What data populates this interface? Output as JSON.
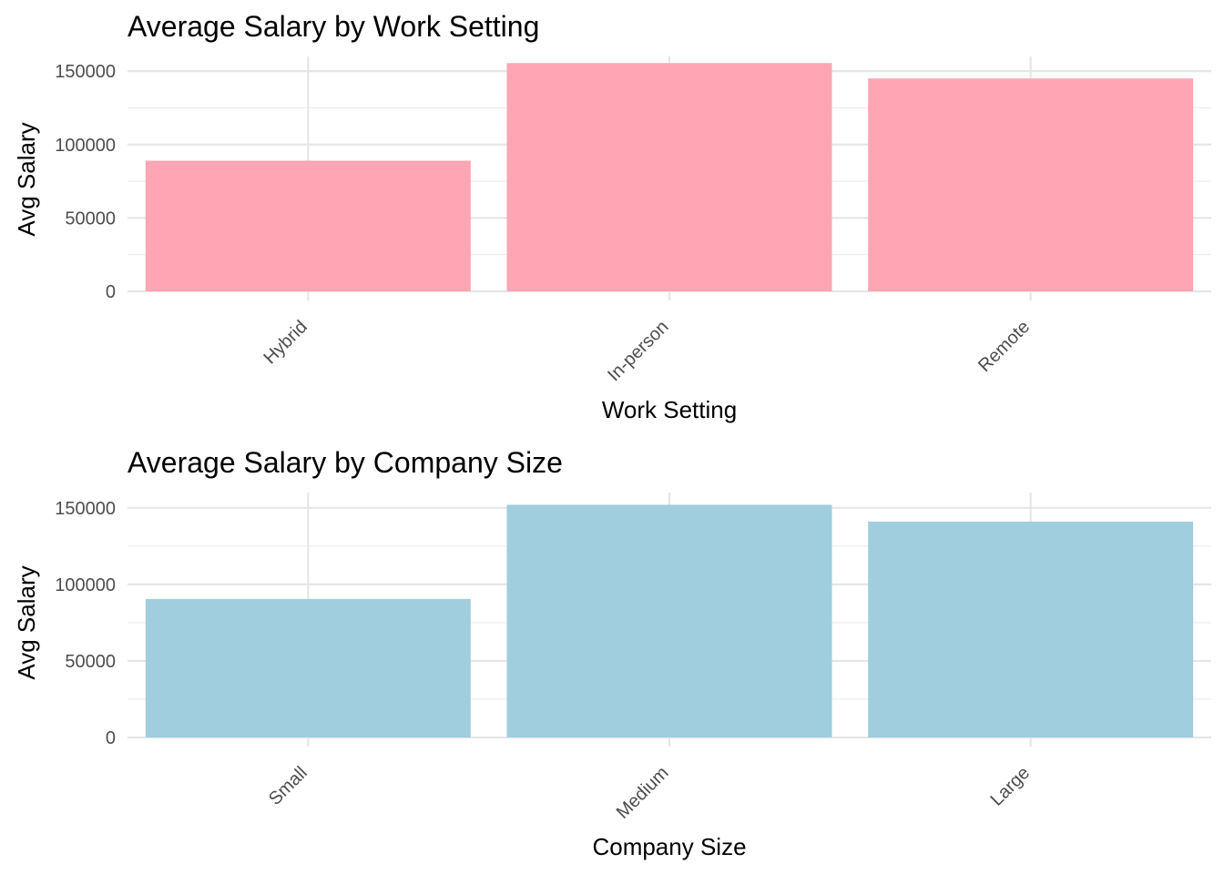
{
  "chart_data": [
    {
      "type": "bar",
      "title": "Average Salary by Work Setting",
      "xlabel": "Work Setting",
      "ylabel": "Avg Salary",
      "categories": [
        "Hybrid",
        "In-person",
        "Remote"
      ],
      "values": [
        89000,
        155500,
        145000
      ],
      "ylim": [
        0,
        160000
      ],
      "yticks": [
        "0",
        "50000",
        "100000",
        "150000"
      ],
      "bar_color": "#FFA5B4",
      "grid": true,
      "legend": "none"
    },
    {
      "type": "bar",
      "title": "Average Salary by Company Size",
      "xlabel": "Company Size",
      "ylabel": "Avg Salary",
      "categories": [
        "Small",
        "Medium",
        "Large"
      ],
      "values": [
        90500,
        152000,
        141000
      ],
      "ylim": [
        0,
        160000
      ],
      "yticks": [
        "0",
        "50000",
        "100000",
        "150000"
      ],
      "bar_color": "#A0CEDF",
      "grid": true,
      "legend": "none"
    }
  ]
}
